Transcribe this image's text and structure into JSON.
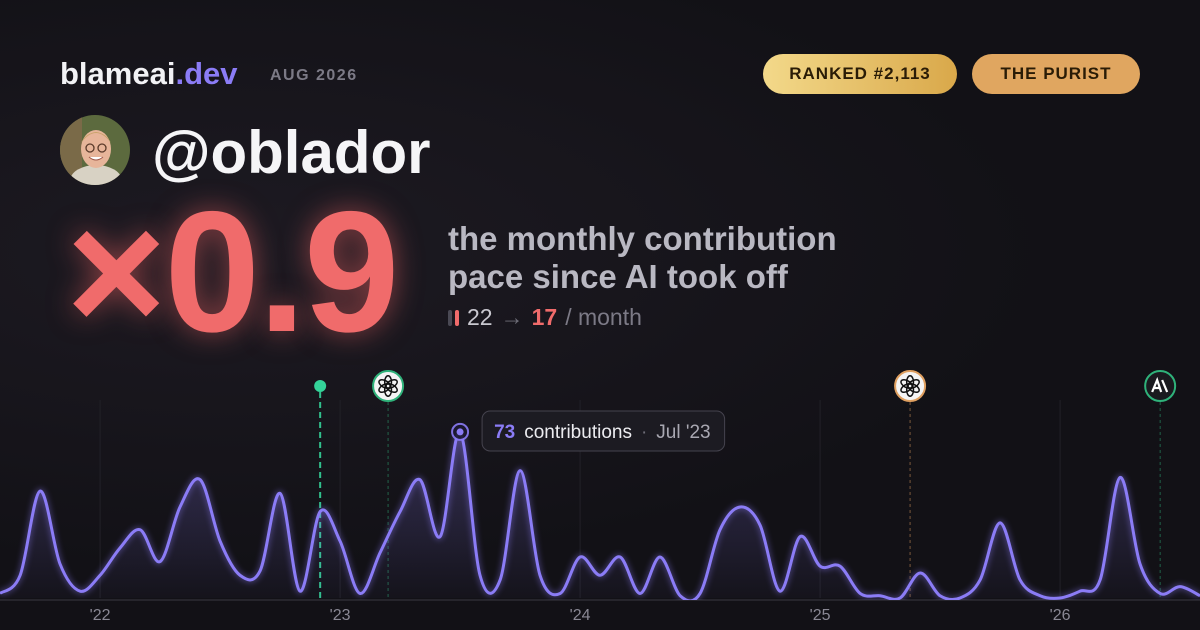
{
  "brand": {
    "name": "blameai",
    "tld": ".dev",
    "period": "AUG 2026"
  },
  "badges": [
    "RANKED #2,113",
    "THE PURIST"
  ],
  "profile": {
    "handle": "@oblador"
  },
  "headline": {
    "multiplier": "×0.9",
    "description": [
      "the monthly contribution",
      "pace since AI took off"
    ],
    "before": 22,
    "arrow": "→",
    "after": 17,
    "unit": "/ month"
  },
  "chart_data": {
    "type": "line",
    "color": "#8b7cf6",
    "x": [
      2021.583,
      2021.667,
      2021.75,
      2021.833,
      2021.917,
      2022,
      2022.083,
      2022.167,
      2022.25,
      2022.333,
      2022.417,
      2022.5,
      2022.583,
      2022.667,
      2022.75,
      2022.833,
      2022.917,
      2023,
      2023.083,
      2023.167,
      2023.25,
      2023.333,
      2023.417,
      2023.5,
      2023.583,
      2023.667,
      2023.75,
      2023.833,
      2023.917,
      2024,
      2024.083,
      2024.167,
      2024.25,
      2024.333,
      2024.417,
      2024.5,
      2024.583,
      2024.667,
      2024.75,
      2024.833,
      2024.917,
      2025,
      2025.083,
      2025.167,
      2025.25,
      2025.333,
      2025.417,
      2025.5,
      2025.583,
      2025.667,
      2025.75,
      2025.833,
      2025.917,
      2026,
      2026.083,
      2026.167,
      2026.25,
      2026.333,
      2026.417,
      2026.5,
      2026.583
    ],
    "values": [
      2,
      10,
      47,
      15,
      3,
      10,
      22,
      30,
      16,
      40,
      52,
      25,
      10,
      12,
      46,
      3,
      38,
      25,
      2,
      20,
      38,
      52,
      27,
      73,
      10,
      8,
      56,
      10,
      2,
      18,
      10,
      18,
      2,
      18,
      1,
      2,
      30,
      40,
      32,
      3,
      27,
      14,
      14,
      2,
      1,
      0,
      11,
      1,
      0,
      8,
      33,
      8,
      1,
      0,
      3,
      8,
      53,
      15,
      2,
      5,
      1
    ],
    "xlim": [
      2021.583,
      2026.583
    ],
    "xticks": [
      {
        "value": 2022,
        "label": "'22"
      },
      {
        "value": 2023,
        "label": "'23"
      },
      {
        "value": 2024,
        "label": "'24"
      },
      {
        "value": 2025,
        "label": "'25"
      },
      {
        "value": 2026,
        "label": "'26"
      }
    ],
    "ylim": [
      0,
      80
    ],
    "grid": true,
    "events": [
      {
        "x": 2022.917,
        "icon": "dot",
        "color": "#34d399"
      },
      {
        "x": 2023.2,
        "icon": "openai",
        "color": "#2fb27a"
      },
      {
        "x": 2025.375,
        "icon": "openai",
        "color": "#e0a060"
      },
      {
        "x": 2026.417,
        "icon": "anthropic",
        "color": "#2fb27a"
      }
    ],
    "tooltip": {
      "x": 2023.5,
      "value": 73,
      "label": "contributions",
      "separator": "·",
      "date": "Jul '23"
    }
  }
}
